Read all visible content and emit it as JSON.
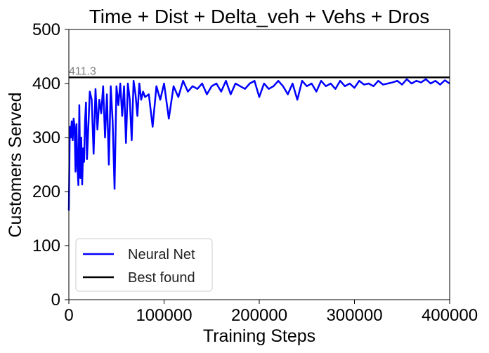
{
  "chart_data": {
    "type": "line",
    "title": "Time + Dist + Delta_veh + Vehs + Dros",
    "xlabel": "Training Steps",
    "ylabel": "Customers Served",
    "xlim": [
      0,
      400000
    ],
    "ylim": [
      0,
      500
    ],
    "xticks": [
      0,
      100000,
      200000,
      300000,
      400000
    ],
    "yticks": [
      0,
      100,
      200,
      300,
      400,
      500
    ],
    "grid": false,
    "legend": {
      "placement": "lower-left",
      "entries": [
        "Neural Net",
        "Best found"
      ]
    },
    "best_found_annotation": "411.3",
    "series": [
      {
        "name": "Neural Net",
        "color": "#0000ff",
        "x": [
          0,
          1000,
          2000,
          3000,
          4000,
          5000,
          6000,
          7000,
          8000,
          9000,
          10000,
          11000,
          12000,
          13000,
          14000,
          15000,
          16000,
          17000,
          18000,
          19000,
          20000,
          22000,
          24000,
          26000,
          28000,
          30000,
          32000,
          34000,
          36000,
          38000,
          40000,
          42000,
          44000,
          46000,
          48000,
          50000,
          52000,
          54000,
          56000,
          58000,
          60000,
          62000,
          64000,
          66000,
          68000,
          70000,
          72000,
          74000,
          76000,
          78000,
          80000,
          84000,
          88000,
          92000,
          96000,
          100000,
          105000,
          110000,
          115000,
          120000,
          125000,
          130000,
          135000,
          140000,
          145000,
          150000,
          155000,
          160000,
          165000,
          170000,
          175000,
          180000,
          185000,
          190000,
          195000,
          200000,
          205000,
          210000,
          215000,
          220000,
          225000,
          230000,
          235000,
          240000,
          245000,
          250000,
          255000,
          260000,
          265000,
          270000,
          275000,
          280000,
          285000,
          290000,
          295000,
          300000,
          305000,
          310000,
          315000,
          320000,
          325000,
          330000,
          335000,
          340000,
          345000,
          350000,
          355000,
          360000,
          365000,
          370000,
          375000,
          380000,
          385000,
          390000,
          395000,
          400000
        ],
        "y": [
          165,
          320,
          300,
          330,
          295,
          335,
          320,
          237,
          325,
          248,
          212,
          360,
          225,
          300,
          213,
          280,
          255,
          330,
          365,
          260,
          300,
          385,
          370,
          270,
          390,
          315,
          370,
          345,
          395,
          300,
          380,
          250,
          395,
          330,
          205,
          395,
          360,
          400,
          340,
          395,
          290,
          400,
          370,
          295,
          405,
          380,
          340,
          400,
          370,
          385,
          375,
          380,
          320,
          395,
          370,
          400,
          335,
          395,
          375,
          405,
          385,
          395,
          390,
          400,
          380,
          395,
          400,
          385,
          405,
          380,
          400,
          395,
          390,
          400,
          405,
          375,
          400,
          390,
          395,
          405,
          395,
          380,
          400,
          370,
          405,
          395,
          400,
          385,
          405,
          395,
          400,
          390,
          405,
          395,
          400,
          392,
          405,
          398,
          400,
          395,
          405,
          398,
          400,
          402,
          405,
          398,
          408,
          400,
          405,
          402,
          408,
          400,
          405,
          398,
          406,
          400
        ]
      },
      {
        "name": "Best found",
        "color": "#000000",
        "x": [
          0,
          400000
        ],
        "y": [
          411.3,
          411.3
        ]
      }
    ]
  }
}
